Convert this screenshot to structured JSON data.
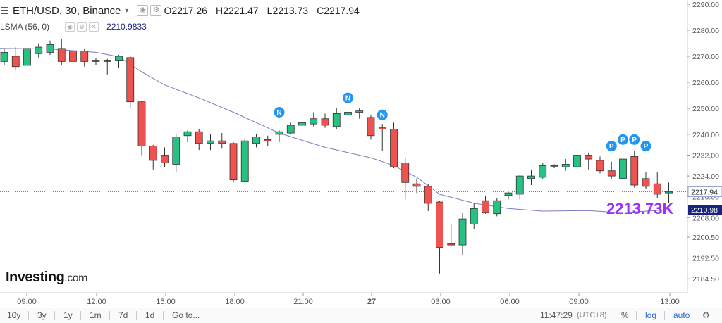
{
  "header": {
    "symbol_title": "ETH/USD, 30, Binance",
    "open_label": "O",
    "open": "2217.26",
    "high_label": "H",
    "high": "2221.47",
    "low_label": "L",
    "low": "2213.73",
    "close_label": "C",
    "close": "2217.94"
  },
  "indicator": {
    "name": "LSMA (56, 0)",
    "value": "2210.9833",
    "color": "#7b7bc0"
  },
  "logo": {
    "main": "Investing",
    "suffix": ".com"
  },
  "big_price": "2213.73K",
  "toolbar": {
    "ranges": [
      "10y",
      "3y",
      "1y",
      "1m",
      "7d",
      "1d"
    ],
    "goto": "Go to...",
    "time": "11:47:29",
    "tz": "(UTC+8)",
    "percent": "%",
    "log": "log",
    "auto": "auto"
  },
  "colors": {
    "up": "#26c281",
    "down": "#ef5350",
    "border": "#333333",
    "lsma": "#7b7bc0",
    "marker": "#2196f3",
    "last_label_bg": "#1a237e"
  },
  "chart_data": {
    "type": "candlestick",
    "ylim": [
      2180,
      2292
    ],
    "y_ticks": [
      2184.5,
      2192.5,
      2200.5,
      2208.0,
      2216.0,
      2224.0,
      2232.0,
      2240.0,
      2250.0,
      2260.0,
      2270.0,
      2280.0,
      2290.0
    ],
    "x_ticks": [
      "09:00",
      "12:00",
      "15:00",
      "18:00",
      "21:00",
      "27",
      "03:00",
      "06:00",
      "09:00",
      "13:00"
    ],
    "candles": [
      {
        "o": 2268.0,
        "h": 2273.0,
        "l": 2266.5,
        "c": 2271.5
      },
      {
        "o": 2270.0,
        "h": 2273.5,
        "l": 2264.5,
        "c": 2266.0
      },
      {
        "o": 2266.5,
        "h": 2274.0,
        "l": 2266.0,
        "c": 2273.0
      },
      {
        "o": 2271.0,
        "h": 2275.0,
        "l": 2269.5,
        "c": 2273.5
      },
      {
        "o": 2271.5,
        "h": 2276.0,
        "l": 2270.5,
        "c": 2274.5
      },
      {
        "o": 2273.0,
        "h": 2276.5,
        "l": 2266.5,
        "c": 2268.0
      },
      {
        "o": 2272.0,
        "h": 2272.5,
        "l": 2267.0,
        "c": 2268.0
      },
      {
        "o": 2272.0,
        "h": 2273.0,
        "l": 2266.0,
        "c": 2268.0
      },
      {
        "o": 2268.0,
        "h": 2269.5,
        "l": 2266.5,
        "c": 2268.5
      },
      {
        "o": 2268.5,
        "h": 2269.0,
        "l": 2263.0,
        "c": 2268.0
      },
      {
        "o": 2268.5,
        "h": 2270.5,
        "l": 2265.5,
        "c": 2270.0
      },
      {
        "o": 2269.5,
        "h": 2270.0,
        "l": 2250.0,
        "c": 2252.5
      },
      {
        "o": 2252.5,
        "h": 2253.0,
        "l": 2232.0,
        "c": 2235.5
      },
      {
        "o": 2235.5,
        "h": 2236.0,
        "l": 2226.5,
        "c": 2230.0
      },
      {
        "o": 2232.0,
        "h": 2235.0,
        "l": 2227.5,
        "c": 2229.0
      },
      {
        "o": 2228.5,
        "h": 2240.0,
        "l": 2225.5,
        "c": 2239.0
      },
      {
        "o": 2239.5,
        "h": 2241.5,
        "l": 2237.0,
        "c": 2241.0
      },
      {
        "o": 2241.0,
        "h": 2242.0,
        "l": 2234.0,
        "c": 2236.5
      },
      {
        "o": 2236.5,
        "h": 2240.0,
        "l": 2234.0,
        "c": 2237.5
      },
      {
        "o": 2237.5,
        "h": 2240.5,
        "l": 2234.5,
        "c": 2236.5
      },
      {
        "o": 2236.5,
        "h": 2237.0,
        "l": 2221.5,
        "c": 2222.5
      },
      {
        "o": 2222.0,
        "h": 2238.5,
        "l": 2221.5,
        "c": 2237.5
      },
      {
        "o": 2236.5,
        "h": 2240.0,
        "l": 2235.0,
        "c": 2239.0
      },
      {
        "o": 2238.0,
        "h": 2239.5,
        "l": 2235.5,
        "c": 2237.5
      },
      {
        "o": 2240.0,
        "h": 2241.5,
        "l": 2237.0,
        "c": 2241.0
      },
      {
        "o": 2240.5,
        "h": 2244.5,
        "l": 2240.0,
        "c": 2243.5
      },
      {
        "o": 2243.5,
        "h": 2246.5,
        "l": 2241.5,
        "c": 2244.5
      },
      {
        "o": 2244.0,
        "h": 2248.5,
        "l": 2243.0,
        "c": 2246.0
      },
      {
        "o": 2246.0,
        "h": 2248.0,
        "l": 2242.5,
        "c": 2243.5
      },
      {
        "o": 2243.0,
        "h": 2250.0,
        "l": 2242.0,
        "c": 2248.0
      },
      {
        "o": 2247.5,
        "h": 2249.5,
        "l": 2241.5,
        "c": 2248.5
      },
      {
        "o": 2248.5,
        "h": 2250.0,
        "l": 2246.0,
        "c": 2249.0
      },
      {
        "o": 2246.5,
        "h": 2247.5,
        "l": 2238.0,
        "c": 2239.5
      },
      {
        "o": 2242.5,
        "h": 2244.0,
        "l": 2233.5,
        "c": 2242.0
      },
      {
        "o": 2242.0,
        "h": 2244.5,
        "l": 2227.0,
        "c": 2227.5
      },
      {
        "o": 2229.0,
        "h": 2231.0,
        "l": 2215.0,
        "c": 2221.5
      },
      {
        "o": 2221.0,
        "h": 2223.0,
        "l": 2217.5,
        "c": 2220.0
      },
      {
        "o": 2220.0,
        "h": 2221.0,
        "l": 2210.5,
        "c": 2213.5
      },
      {
        "o": 2214.0,
        "h": 2214.5,
        "l": 2186.5,
        "c": 2196.5
      },
      {
        "o": 2198.0,
        "h": 2205.5,
        "l": 2197.0,
        "c": 2197.5
      },
      {
        "o": 2197.5,
        "h": 2210.0,
        "l": 2193.5,
        "c": 2207.5
      },
      {
        "o": 2205.5,
        "h": 2213.5,
        "l": 2203.5,
        "c": 2211.5
      },
      {
        "o": 2214.5,
        "h": 2216.5,
        "l": 2209.5,
        "c": 2210.0
      },
      {
        "o": 2209.5,
        "h": 2215.5,
        "l": 2208.5,
        "c": 2214.5
      },
      {
        "o": 2216.5,
        "h": 2218.0,
        "l": 2215.0,
        "c": 2217.5
      },
      {
        "o": 2217.0,
        "h": 2224.5,
        "l": 2215.0,
        "c": 2224.0
      },
      {
        "o": 2223.0,
        "h": 2226.5,
        "l": 2220.5,
        "c": 2224.0
      },
      {
        "o": 2223.5,
        "h": 2229.0,
        "l": 2223.0,
        "c": 2228.0
      },
      {
        "o": 2228.0,
        "h": 2228.5,
        "l": 2227.0,
        "c": 2228.0
      },
      {
        "o": 2227.5,
        "h": 2230.5,
        "l": 2226.0,
        "c": 2228.5
      },
      {
        "o": 2227.5,
        "h": 2232.5,
        "l": 2227.0,
        "c": 2232.0
      },
      {
        "o": 2232.0,
        "h": 2233.0,
        "l": 2226.5,
        "c": 2230.5
      },
      {
        "o": 2230.0,
        "h": 2231.5,
        "l": 2225.0,
        "c": 2226.0
      },
      {
        "o": 2226.0,
        "h": 2229.5,
        "l": 2223.0,
        "c": 2224.0
      },
      {
        "o": 2223.0,
        "h": 2232.0,
        "l": 2222.5,
        "c": 2230.5
      },
      {
        "o": 2231.5,
        "h": 2233.5,
        "l": 2219.5,
        "c": 2220.5
      },
      {
        "o": 2223.0,
        "h": 2225.5,
        "l": 2219.0,
        "c": 2220.0
      },
      {
        "o": 2221.0,
        "h": 2225.5,
        "l": 2215.5,
        "c": 2217.0
      },
      {
        "o": 2217.5,
        "h": 2221.5,
        "l": 2213.5,
        "c": 2218.0
      }
    ],
    "lsma": [
      {
        "i": -4,
        "v": 2273.5
      },
      {
        "i": 0,
        "v": 2273.0
      },
      {
        "i": 4,
        "v": 2272.8
      },
      {
        "i": 8,
        "v": 2271.5
      },
      {
        "i": 10,
        "v": 2269.8
      },
      {
        "i": 12,
        "v": 2264.0
      },
      {
        "i": 14,
        "v": 2259.0
      },
      {
        "i": 17,
        "v": 2254.0
      },
      {
        "i": 20,
        "v": 2248.5
      },
      {
        "i": 22,
        "v": 2244.5
      },
      {
        "i": 24,
        "v": 2240.5
      },
      {
        "i": 28,
        "v": 2235.0
      },
      {
        "i": 32,
        "v": 2231.0
      },
      {
        "i": 34,
        "v": 2228.0
      },
      {
        "i": 36,
        "v": 2223.5
      },
      {
        "i": 38,
        "v": 2217.0
      },
      {
        "i": 41,
        "v": 2213.5
      },
      {
        "i": 44,
        "v": 2211.5
      },
      {
        "i": 47,
        "v": 2210.5
      },
      {
        "i": 51,
        "v": 2210.7
      },
      {
        "i": 54,
        "v": 2209.8
      },
      {
        "i": 57,
        "v": 2210.8
      },
      {
        "i": 58,
        "v": 2210.98
      }
    ],
    "markers": [
      {
        "i": 24,
        "label": "N",
        "above": 2248.5
      },
      {
        "i": 30,
        "label": "N",
        "above": 2254.0
      },
      {
        "i": 33,
        "label": "N",
        "above": 2247.5
      },
      {
        "i": 53,
        "label": "P",
        "above": 2235.5
      },
      {
        "i": 54,
        "label": "P",
        "above": 2238.0
      },
      {
        "i": 55,
        "label": "P",
        "above": 2238.0
      },
      {
        "i": 56,
        "label": "P",
        "above": 2235.5
      }
    ],
    "last_price": 2217.94,
    "lsma_last": 2210.98
  }
}
